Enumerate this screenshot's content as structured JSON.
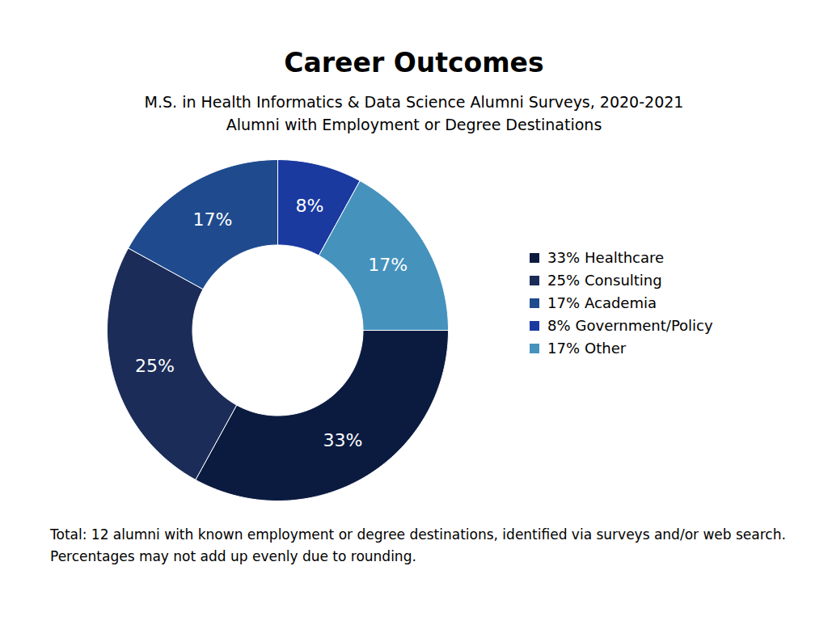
{
  "chart_data": {
    "type": "donut",
    "title": "Career Outcomes",
    "subtitle": [
      "M.S. in Health Informatics & Data Science Alumni Surveys, 2020-2021",
      "Alumni with Employment or Degree Destinations"
    ],
    "categories": [
      "Healthcare",
      "Consulting",
      "Academia",
      "Government/Policy",
      "Other"
    ],
    "values": [
      33,
      25,
      17,
      8,
      17
    ],
    "value_labels": [
      "33%",
      "25%",
      "17%",
      "8%",
      "17%"
    ],
    "colors": [
      "#0b1b40",
      "#1b2c58",
      "#1f4b8e",
      "#1a3aa0",
      "#4592bd"
    ],
    "data_labels": true,
    "legend": "right",
    "caption": "Total: 12 alumni with known employment or degree destinations, identified via surveys and/or web search. Percentages may not add up evenly due to rounding."
  }
}
